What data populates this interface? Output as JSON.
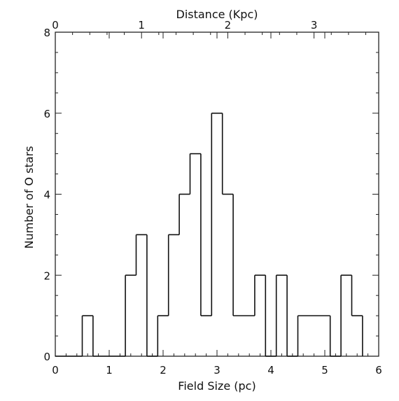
{
  "chart_data": {
    "type": "histogram",
    "title": "",
    "xlabel": "Field Size (pc)",
    "ylabel": "Number of O stars",
    "top_xlabel": "Distance (Kpc)",
    "xlim": [
      0,
      6
    ],
    "ylim": [
      0,
      8
    ],
    "top_xlim": [
      0,
      3.75
    ],
    "x_ticks": [
      "0",
      "1",
      "2",
      "3",
      "4",
      "5",
      "6"
    ],
    "y_ticks": [
      "0",
      "2",
      "4",
      "6",
      "8"
    ],
    "top_x_ticks": [
      "0",
      "1",
      "2",
      "3"
    ],
    "bin_edges": [
      0.0,
      0.5,
      0.7,
      1.3,
      1.5,
      1.7,
      1.9,
      2.1,
      2.3,
      2.5,
      2.7,
      2.9,
      3.1,
      3.3,
      3.7,
      3.9,
      4.1,
      4.3,
      4.5,
      5.1,
      5.3,
      5.5,
      5.7
    ],
    "counts": [
      0,
      1,
      0,
      2,
      3,
      0,
      1,
      3,
      4,
      5,
      1,
      6,
      4,
      1,
      2,
      0,
      2,
      0,
      1,
      0,
      2,
      1
    ],
    "grid": false,
    "legend": "none"
  }
}
